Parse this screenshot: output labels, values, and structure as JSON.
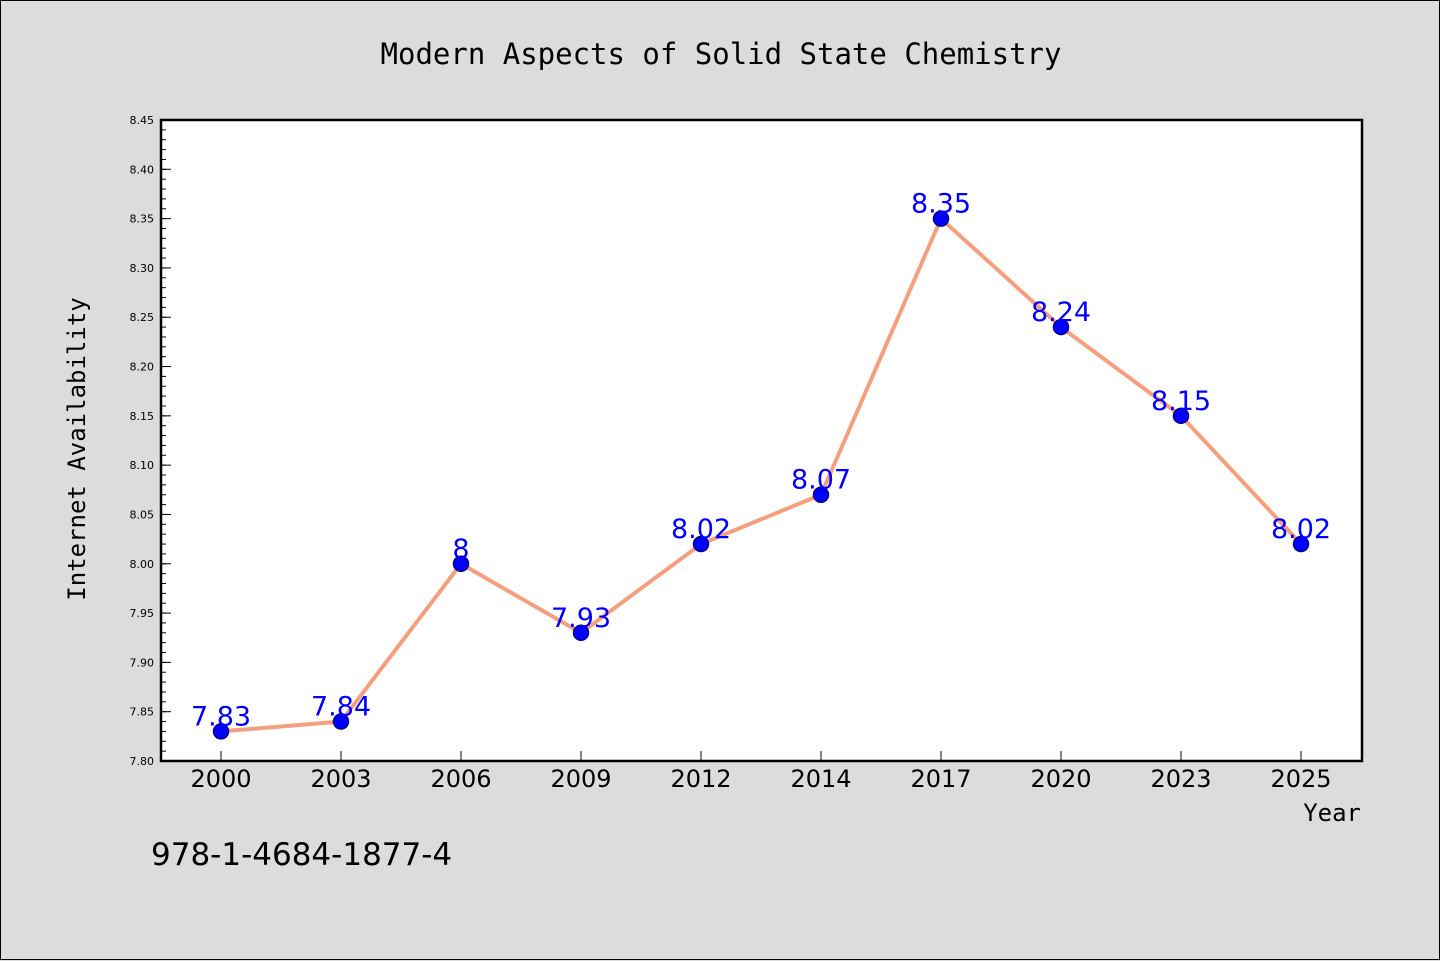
{
  "chart_data": {
    "type": "line",
    "title": "Modern Aspects of Solid State Chemistry",
    "xlabel": "Year",
    "ylabel": "Internet Availability",
    "categories": [
      "2000",
      "2003",
      "2006",
      "2009",
      "2012",
      "2014",
      "2017",
      "2020",
      "2023",
      "2025"
    ],
    "series": [
      {
        "values": [
          7.83,
          7.84,
          8.0,
          7.93,
          8.02,
          8.07,
          8.35,
          8.24,
          8.15,
          8.02
        ],
        "labels": [
          "7.83",
          "7.84",
          "8",
          "7.93",
          "8.02",
          "8.07",
          "8.35",
          "8.24",
          "8.15",
          "8.02"
        ]
      }
    ],
    "ylim": [
      7.8,
      8.45
    ],
    "yticks": [
      "7.80",
      "7.85",
      "7.90",
      "7.95",
      "8.00",
      "8.05",
      "8.10",
      "8.15",
      "8.20",
      "8.25",
      "8.30",
      "8.35",
      "8.40",
      "8.45"
    ],
    "grid": false,
    "legend": "none",
    "colors": {
      "line": "#f4a07f",
      "marker_fill": "#0000ff",
      "marker_edge": "#00008b",
      "label": "#0000ff",
      "figure_background": "#dcdcdc",
      "plot_background": "#ffffff"
    }
  },
  "footer": {
    "text": "978-1-4684-1877-4"
  }
}
